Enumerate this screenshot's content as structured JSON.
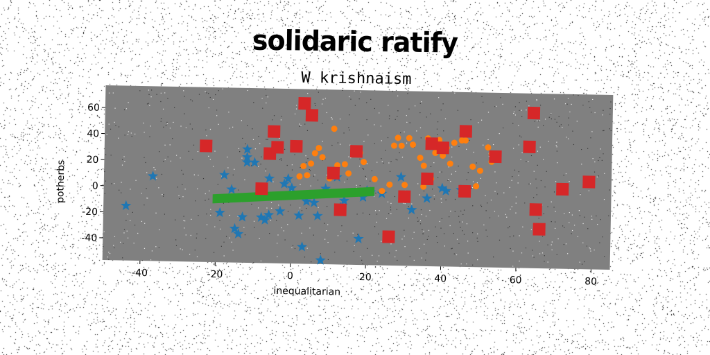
{
  "chart_data": {
    "type": "scatter",
    "title": "solidaric ratify",
    "subtitle": "W krishnaism",
    "xlabel": "inequalitarian",
    "ylabel": "potherbs",
    "xlim": [
      -50,
      85
    ],
    "ylim": [
      -57,
      77
    ],
    "xticks": [
      -40,
      -20,
      0,
      20,
      40,
      60,
      80
    ],
    "yticks": [
      -40,
      -20,
      0,
      20,
      40,
      60
    ],
    "grid": false,
    "legend": "none",
    "colors": {
      "plot_background": "#808080",
      "series_stars": "#1f77b4",
      "series_circles": "#ff7f0e",
      "series_band": "#2ca02c",
      "series_squares": "#d62728"
    },
    "series": [
      {
        "marker": "star",
        "color": "#1f77b4",
        "points": [
          [
            -44,
            -15
          ],
          [
            -37,
            8
          ],
          [
            -19,
            -19
          ],
          [
            -18,
            10
          ],
          [
            -16,
            -1
          ],
          [
            -15,
            -31
          ],
          [
            -14,
            -35
          ],
          [
            -13,
            -22
          ],
          [
            -12,
            30
          ],
          [
            -12,
            20
          ],
          [
            -12,
            24
          ],
          [
            -10,
            20
          ],
          [
            -8,
            -22
          ],
          [
            -7,
            -24
          ],
          [
            -6,
            -20
          ],
          [
            -6,
            8
          ],
          [
            -3,
            -17
          ],
          [
            -2,
            4
          ],
          [
            -1,
            8
          ],
          [
            0,
            1
          ],
          [
            2,
            -20
          ],
          [
            3,
            -44
          ],
          [
            4,
            -9
          ],
          [
            6,
            -10
          ],
          [
            7,
            -20
          ],
          [
            8,
            -54
          ],
          [
            9,
            1
          ],
          [
            12,
            10
          ],
          [
            13,
            -13
          ],
          [
            14,
            -8
          ],
          [
            18,
            -37
          ],
          [
            19,
            -5
          ],
          [
            21,
            -1
          ],
          [
            24,
            -2
          ],
          [
            29,
            11
          ],
          [
            32,
            -14
          ],
          [
            36,
            -5
          ],
          [
            40,
            3
          ],
          [
            41,
            1
          ],
          [
            45,
            2
          ],
          [
            46,
            0
          ],
          [
            20,
            0
          ]
        ]
      },
      {
        "marker": "circle",
        "color": "#ff7f0e",
        "points": [
          [
            2,
            10
          ],
          [
            3,
            18
          ],
          [
            4,
            11
          ],
          [
            5,
            20
          ],
          [
            6,
            28
          ],
          [
            7,
            32
          ],
          [
            8,
            25
          ],
          [
            10,
            9
          ],
          [
            11,
            47
          ],
          [
            12,
            19
          ],
          [
            14,
            20
          ],
          [
            15,
            13
          ],
          [
            18,
            29
          ],
          [
            19,
            22
          ],
          [
            22,
            9
          ],
          [
            24,
            0
          ],
          [
            26,
            5
          ],
          [
            27,
            35
          ],
          [
            28,
            41
          ],
          [
            29,
            35
          ],
          [
            30,
            5
          ],
          [
            31,
            41
          ],
          [
            32,
            36
          ],
          [
            34,
            26
          ],
          [
            35,
            20
          ],
          [
            35,
            4
          ],
          [
            36,
            41
          ],
          [
            37,
            10
          ],
          [
            38,
            30
          ],
          [
            39,
            40
          ],
          [
            40,
            28
          ],
          [
            41,
            34
          ],
          [
            42,
            22
          ],
          [
            43,
            38
          ],
          [
            45,
            40
          ],
          [
            46,
            40
          ],
          [
            48,
            20
          ],
          [
            49,
            5
          ],
          [
            50,
            17
          ],
          [
            52,
            35
          ],
          [
            53,
            30
          ],
          [
            53,
            24
          ]
        ]
      },
      {
        "marker": "band",
        "color": "#2ca02c",
        "x": [
          -21,
          22
        ],
        "lower": [
          -12,
          -4
        ],
        "upper": [
          -5,
          3
        ]
      },
      {
        "marker": "square",
        "color": "#d62728",
        "points": [
          [
            -23,
            32
          ],
          [
            -8,
            0
          ],
          [
            -6,
            27
          ],
          [
            -5,
            44
          ],
          [
            -4,
            32
          ],
          [
            1,
            33
          ],
          [
            3,
            66
          ],
          [
            5,
            57
          ],
          [
            11,
            13
          ],
          [
            13,
            -15
          ],
          [
            17,
            30
          ],
          [
            26,
            -35
          ],
          [
            30,
            -4
          ],
          [
            36,
            10
          ],
          [
            37,
            37
          ],
          [
            40,
            34
          ],
          [
            46,
            47
          ],
          [
            46,
            1
          ],
          [
            54,
            28
          ],
          [
            63,
            36
          ],
          [
            64,
            62
          ],
          [
            65,
            -12
          ],
          [
            66,
            -27
          ],
          [
            72,
            4
          ],
          [
            79,
            10
          ]
        ]
      }
    ]
  }
}
